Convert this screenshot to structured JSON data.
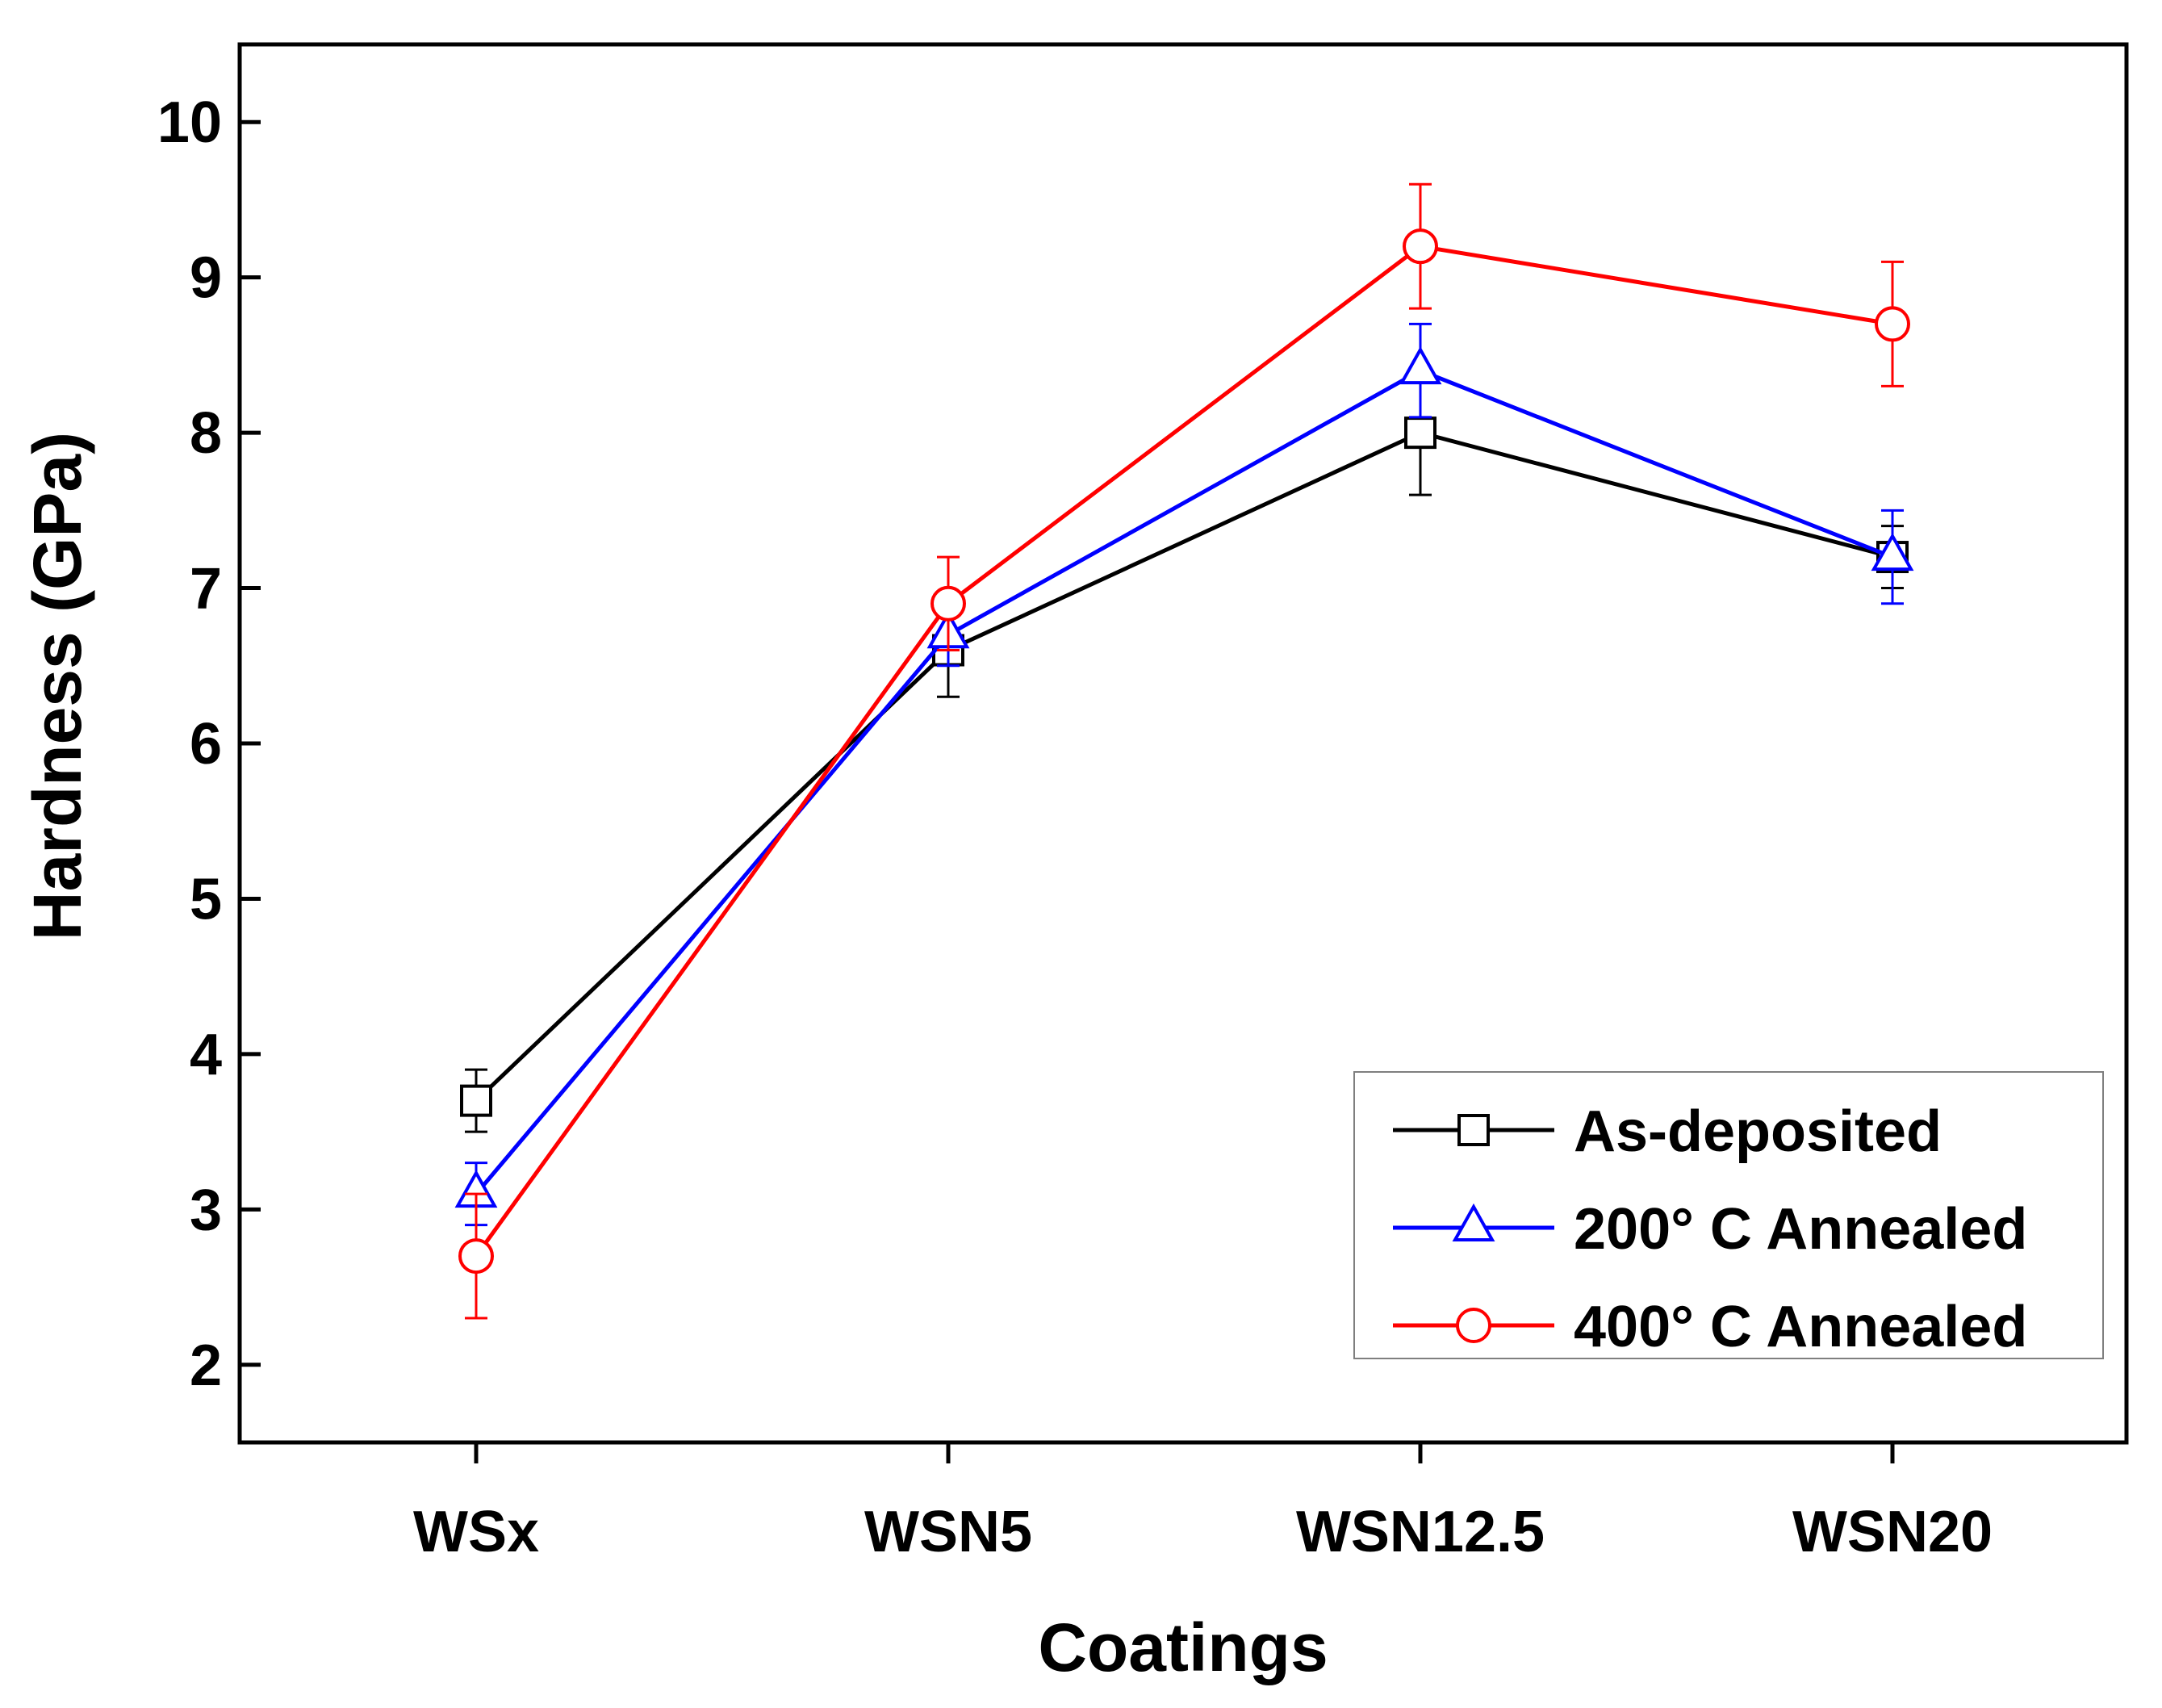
{
  "chart_data": {
    "type": "line",
    "title": "",
    "xlabel": "Coatings",
    "ylabel": "Hardness (GPa)",
    "categories": [
      "WSx",
      "WSN5",
      "WSN12.5",
      "WSN20"
    ],
    "ylim": [
      1.5,
      10.5
    ],
    "yticks": [
      2,
      3,
      4,
      5,
      6,
      7,
      8,
      9,
      10
    ],
    "ytick_labels": [
      "2",
      "3",
      "4",
      "5",
      "6",
      "7",
      "8",
      "9",
      "10"
    ],
    "grid": false,
    "legend_position": "bottom-right",
    "series": [
      {
        "name": "As-deposited",
        "color": "#000000",
        "marker": "square",
        "values": [
          3.7,
          6.6,
          8.0,
          7.2
        ],
        "errors": [
          0.2,
          0.3,
          0.4,
          0.2
        ]
      },
      {
        "name": "200° C Annealed",
        "color": "#0000ff",
        "marker": "triangle",
        "values": [
          3.1,
          6.7,
          8.4,
          7.2
        ],
        "errors": [
          0.2,
          0.2,
          0.3,
          0.3
        ]
      },
      {
        "name": "400° C Annealed",
        "color": "#ff0000",
        "marker": "circle",
        "values": [
          2.7,
          6.9,
          9.2,
          8.7
        ],
        "errors": [
          0.4,
          0.3,
          0.4,
          0.4
        ]
      }
    ]
  }
}
